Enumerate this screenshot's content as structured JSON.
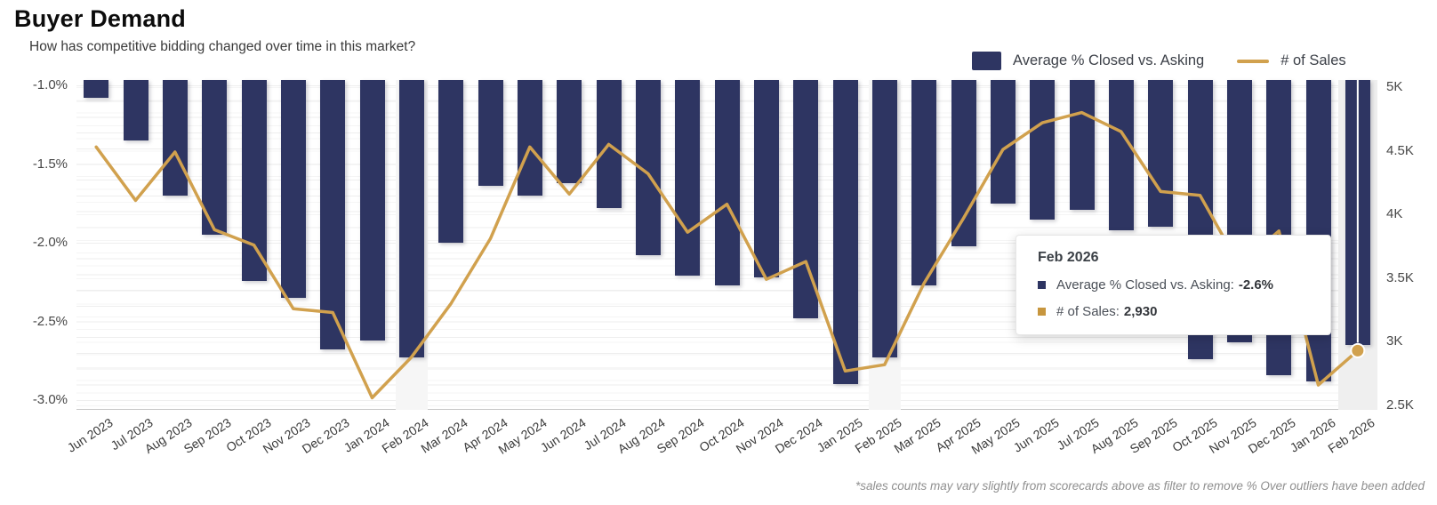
{
  "header": {
    "title": "Buyer Demand",
    "subtitle": "How has competitive bidding changed over time in this market?"
  },
  "colors": {
    "bar": "#2e3562",
    "line": "#d1a14e",
    "sales_swatch": "#c7963e",
    "highlight_band": "#f6f6f6",
    "hover_band": "#efefef",
    "point_fill": "#d1a14e",
    "point_ring": "#ffffff"
  },
  "axes": {
    "left_ticks": [
      "-1.0%",
      "-1.5%",
      "-2.0%",
      "-2.5%",
      "-3.0%"
    ],
    "left_tick_values": [
      -1.0,
      -1.5,
      -2.0,
      -2.5,
      -3.0
    ],
    "right_ticks": [
      "5K",
      "4.5K",
      "4K",
      "3.5K",
      "3K",
      "2.5K"
    ],
    "right_tick_values": [
      5000,
      4500,
      4000,
      3500,
      3000,
      2500
    ]
  },
  "chart_data": {
    "type": "bar",
    "subtype": "combo-bar-line",
    "title": "Buyer Demand",
    "xlabel": "",
    "ylabel_left": "Average % Closed vs. Asking",
    "ylabel_right": "# of Sales",
    "grid": true,
    "legend_position": "top-right",
    "left_axis_range": [
      -3.05,
      -1.0
    ],
    "right_axis_range": [
      2500,
      5000
    ],
    "categories": [
      "Jun 2023",
      "Jul 2023",
      "Aug 2023",
      "Sep 2023",
      "Oct 2023",
      "Nov 2023",
      "Dec 2023",
      "Jan 2024",
      "Feb 2024",
      "Mar 2024",
      "Apr 2024",
      "May 2024",
      "Jun 2024",
      "Jul 2024",
      "Aug 2024",
      "Sep 2024",
      "Oct 2024",
      "Nov 2024",
      "Dec 2024",
      "Jan 2025",
      "Feb 2025",
      "Mar 2025",
      "Apr 2025",
      "May 2025",
      "Jun 2025",
      "Jul 2025",
      "Aug 2025",
      "Sep 2025",
      "Oct 2025",
      "Nov 2025",
      "Dec 2025",
      "Jan 2026",
      "Feb 2026"
    ],
    "series": [
      {
        "name": "Average % Closed vs. Asking",
        "type": "bar",
        "axis": "left",
        "unit": "%",
        "values": [
          -1.08,
          -1.35,
          -1.7,
          -1.95,
          -2.24,
          -2.35,
          -2.68,
          -2.62,
          -2.73,
          -2.0,
          -1.64,
          -1.7,
          -1.62,
          -1.78,
          -2.08,
          -2.21,
          -2.27,
          -2.22,
          -2.48,
          -2.9,
          -2.73,
          -2.27,
          -2.02,
          -1.75,
          -1.85,
          -1.79,
          -1.92,
          -1.9,
          -2.74,
          -2.63,
          -2.84,
          -2.88,
          -2.65
        ]
      },
      {
        "name": "# of Sales",
        "type": "line",
        "axis": "right",
        "values": [
          4530,
          4110,
          4490,
          3880,
          3760,
          3260,
          3230,
          2560,
          2880,
          3300,
          3810,
          4530,
          4160,
          4550,
          4320,
          3860,
          4080,
          3490,
          3630,
          2770,
          2820,
          3460,
          3970,
          4510,
          4720,
          4800,
          4650,
          4180,
          4150,
          3600,
          3870,
          2660,
          2930
        ]
      }
    ],
    "highlighted_categories": [
      "Feb 2024",
      "Feb 2025",
      "Feb 2026"
    ],
    "hovered_category": "Feb 2026"
  },
  "tooltip": {
    "title": "Feb 2026",
    "rows": [
      {
        "label": "Average % Closed vs. Asking:",
        "value": "-2.6%"
      },
      {
        "label": "# of Sales:",
        "value": "2,930"
      }
    ]
  },
  "footnote": "*sales counts may vary slightly from scorecards above as filter to remove % Over outliers have been added"
}
